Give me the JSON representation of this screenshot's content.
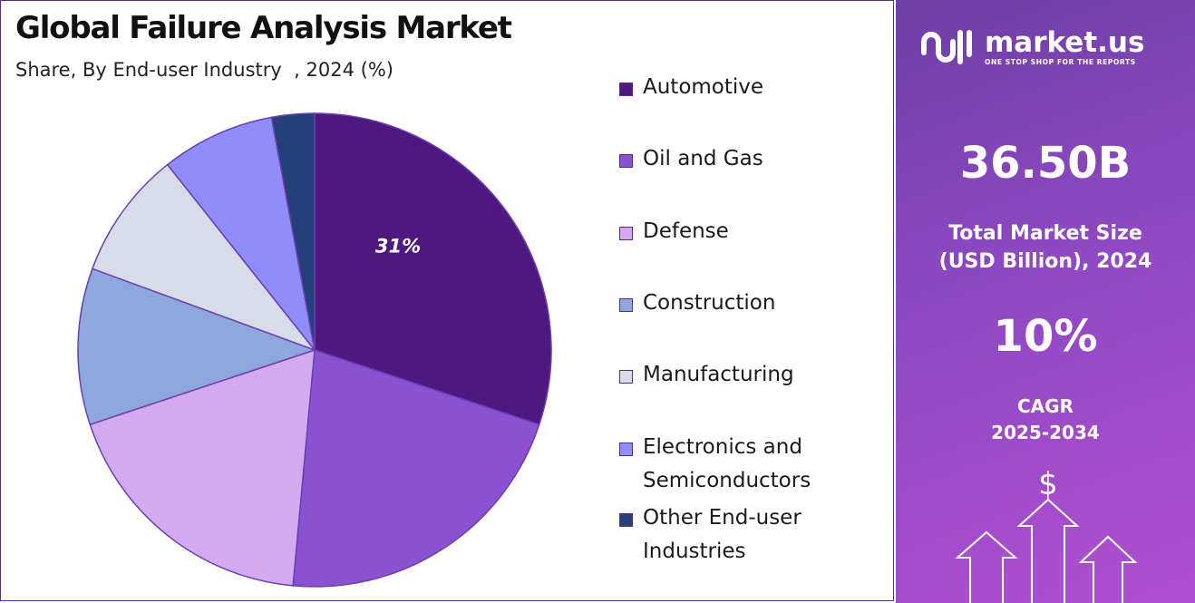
{
  "header": {
    "title": "Global Failure Analysis Market",
    "subtitle": "Share, By End-user Industry  , 2024 (%)"
  },
  "chart_data": {
    "type": "pie",
    "title": "Global Failure Analysis Market",
    "subtitle": "Share, By End-user Industry  , 2024 (%)",
    "start_angle_deg": 0,
    "direction": "clockwise",
    "slices": [
      {
        "label": "Automotive",
        "value": 31,
        "color": "#4f1780",
        "data_label": "31%"
      },
      {
        "label": "Oil and Gas",
        "value": 22,
        "color": "#8a51d3",
        "data_label": ""
      },
      {
        "label": "Defense",
        "value": 19,
        "color": "#d3a9ef",
        "data_label": ""
      },
      {
        "label": "Construction",
        "value": 11,
        "color": "#8ea7dc",
        "data_label": ""
      },
      {
        "label": "Manufacturing",
        "value": 9,
        "color": "#d7dce8",
        "data_label": ""
      },
      {
        "label": "Electronics and Semiconductors",
        "value": 8,
        "color": "#8f8cfc",
        "data_label": ""
      },
      {
        "label": "Other End-user Industries",
        "value": 3,
        "color": "#244079",
        "data_label": ""
      }
    ],
    "legend_position": "right"
  },
  "legend": {
    "items": [
      {
        "label": "Automotive",
        "color": "#4f1780"
      },
      {
        "label": " Oil and Gas",
        "color": "#8a51d3"
      },
      {
        "label": " Defense",
        "color": "#d3a9ef"
      },
      {
        "label": "Construction",
        "color": "#8ea7dc"
      },
      {
        "label": "Manufacturing",
        "color": "#d7dce8"
      },
      {
        "label": " Electronics and\nSemiconductors",
        "color": "#8f8cfc"
      },
      {
        "label": " Other End-user\nIndustries",
        "color": "#244079"
      }
    ]
  },
  "sidebar": {
    "brand_name": "market.us",
    "brand_tagline": "ONE STOP SHOP FOR THE REPORTS",
    "market_size_value": "36.50B",
    "market_size_label": "Total Market Size\n(USD Billion), 2024",
    "cagr_value": "10%",
    "cagr_label": "CAGR\n2025-2034",
    "dollar_symbol": "$"
  }
}
